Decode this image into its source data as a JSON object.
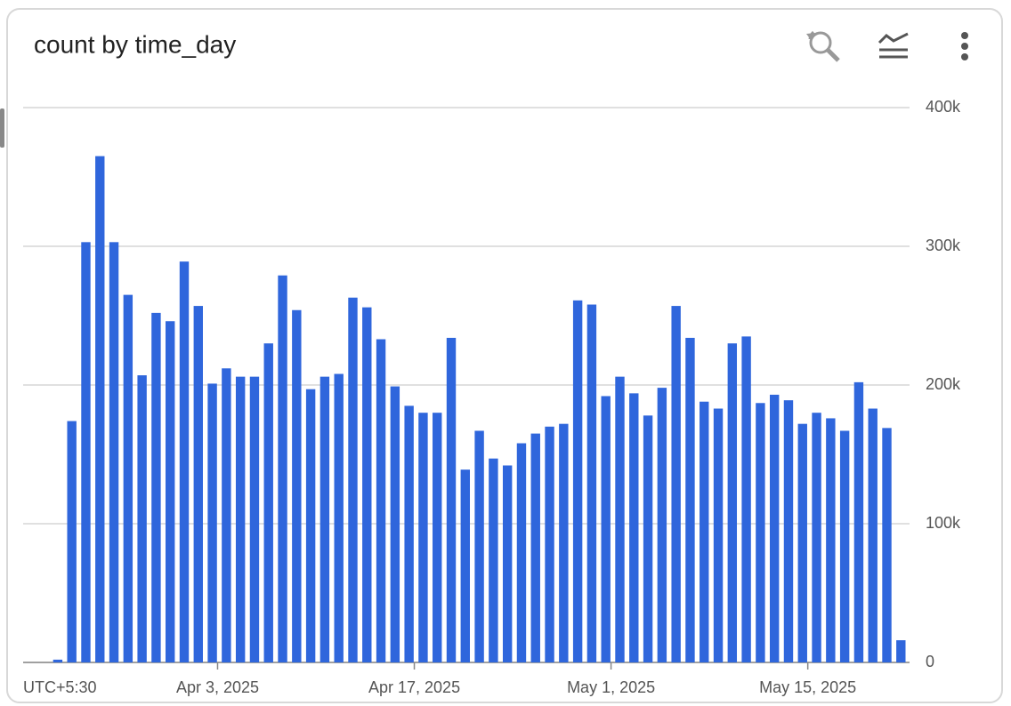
{
  "chart_data": {
    "type": "bar",
    "title": "count by time_day",
    "timezone": "UTC+5:30",
    "color": "#2f66dc",
    "categories": [
      null,
      null,
      null,
      null,
      null,
      null,
      null,
      null,
      null,
      null,
      null,
      null,
      "Apr 3, 2025",
      null,
      null,
      null,
      null,
      null,
      null,
      null,
      null,
      null,
      null,
      null,
      null,
      null,
      "Apr 17, 2025",
      null,
      null,
      null,
      null,
      null,
      null,
      null,
      null,
      null,
      null,
      null,
      null,
      null,
      "May 1, 2025",
      null,
      null,
      null,
      null,
      null,
      null,
      null,
      null,
      null,
      null,
      null,
      null,
      null,
      "May 15, 2025",
      null,
      null,
      null,
      null,
      null,
      null
    ],
    "values": [
      2000,
      174000,
      303000,
      365000,
      303000,
      265000,
      207000,
      252000,
      246000,
      289000,
      257000,
      201000,
      212000,
      206000,
      206000,
      230000,
      279000,
      254000,
      197000,
      206000,
      208000,
      263000,
      256000,
      233000,
      199000,
      185000,
      180000,
      180000,
      234000,
      139000,
      167000,
      147000,
      142000,
      158000,
      165000,
      170000,
      172000,
      261000,
      258000,
      192000,
      206000,
      194000,
      178000,
      198000,
      257000,
      234000,
      188000,
      183000,
      230000,
      235000,
      187000,
      193000,
      189000,
      172000,
      180000,
      176000,
      167000,
      202000,
      183000,
      169000,
      16000
    ],
    "ylim": [
      0,
      400000
    ],
    "yticks": [
      0,
      {
        "value": 100000,
        "label": "100k"
      },
      {
        "value": 200000,
        "label": "200k"
      },
      {
        "value": 300000,
        "label": "300k"
      },
      {
        "value": 400000,
        "label": "400k"
      }
    ],
    "grid": true
  }
}
